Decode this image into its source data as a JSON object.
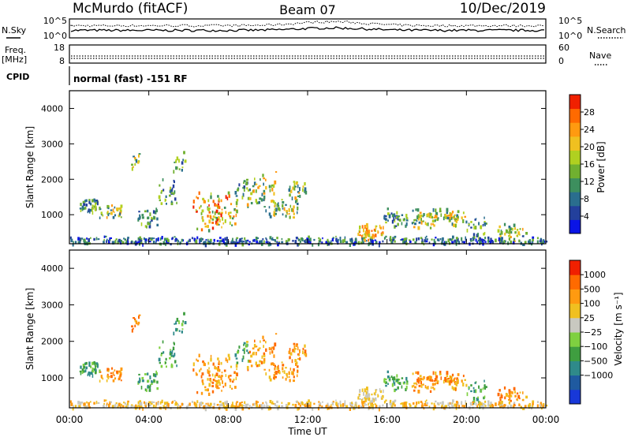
{
  "header": {
    "station": "McMurdo (fitACF)",
    "beam": "Beam 07",
    "date": "10/Dec/2019"
  },
  "top_panel": {
    "left_label": "N.Sky",
    "right_label": "N.Search",
    "left_ticks": [
      "10^5",
      "10^0"
    ],
    "right_ticks": [
      "10^5",
      "10^0"
    ]
  },
  "freq_panel": {
    "left_label": "Freq.",
    "left_unit": "[MHz]",
    "left_ticks": [
      "18",
      "8"
    ],
    "right_label": "Nave",
    "right_ticks": [
      "60",
      "0"
    ]
  },
  "cpid": {
    "label": "CPID",
    "text": "normal (fast) -151 RF"
  },
  "chart_data": [
    {
      "type": "heatmap",
      "ylabel": "Slant Range [km]",
      "ylim": [
        180,
        4500
      ],
      "y_ticks": [
        "1000",
        "2000",
        "3000",
        "4000"
      ],
      "colorbar_label": "Power [dB]",
      "colorbar_ticks": [
        "28",
        "24",
        "20",
        "16",
        "12",
        "8",
        "4"
      ],
      "colors": [
        "#0a14e6",
        "#23409c",
        "#2a6e8e",
        "#3d8f5e",
        "#70b030",
        "#b0d020",
        "#f0c020",
        "#ff9a10",
        "#ff6a00",
        "#f02000"
      ]
    },
    {
      "type": "heatmap",
      "ylabel": "Slant Range [km]",
      "ylim": [
        180,
        4500
      ],
      "y_ticks": [
        "1000",
        "2000",
        "3000",
        "4000"
      ],
      "colorbar_label": "Velocity [m s⁻¹]",
      "colorbar_ticks": [
        "1000",
        "500",
        "100",
        "25",
        "−25",
        "−100",
        "−500",
        "−1000"
      ],
      "colors": [
        "#1838d8",
        "#1f5aa0",
        "#2f8a8a",
        "#3f9e40",
        "#7fd040",
        "#c8c8c0",
        "#f0c020",
        "#ff9a10",
        "#ff6a00",
        "#f02000"
      ]
    }
  ],
  "time_axis": {
    "ticks": [
      "00:00",
      "04:00",
      "08:00",
      "12:00",
      "16:00",
      "20:00",
      "00:00"
    ],
    "label": "Time UT"
  }
}
